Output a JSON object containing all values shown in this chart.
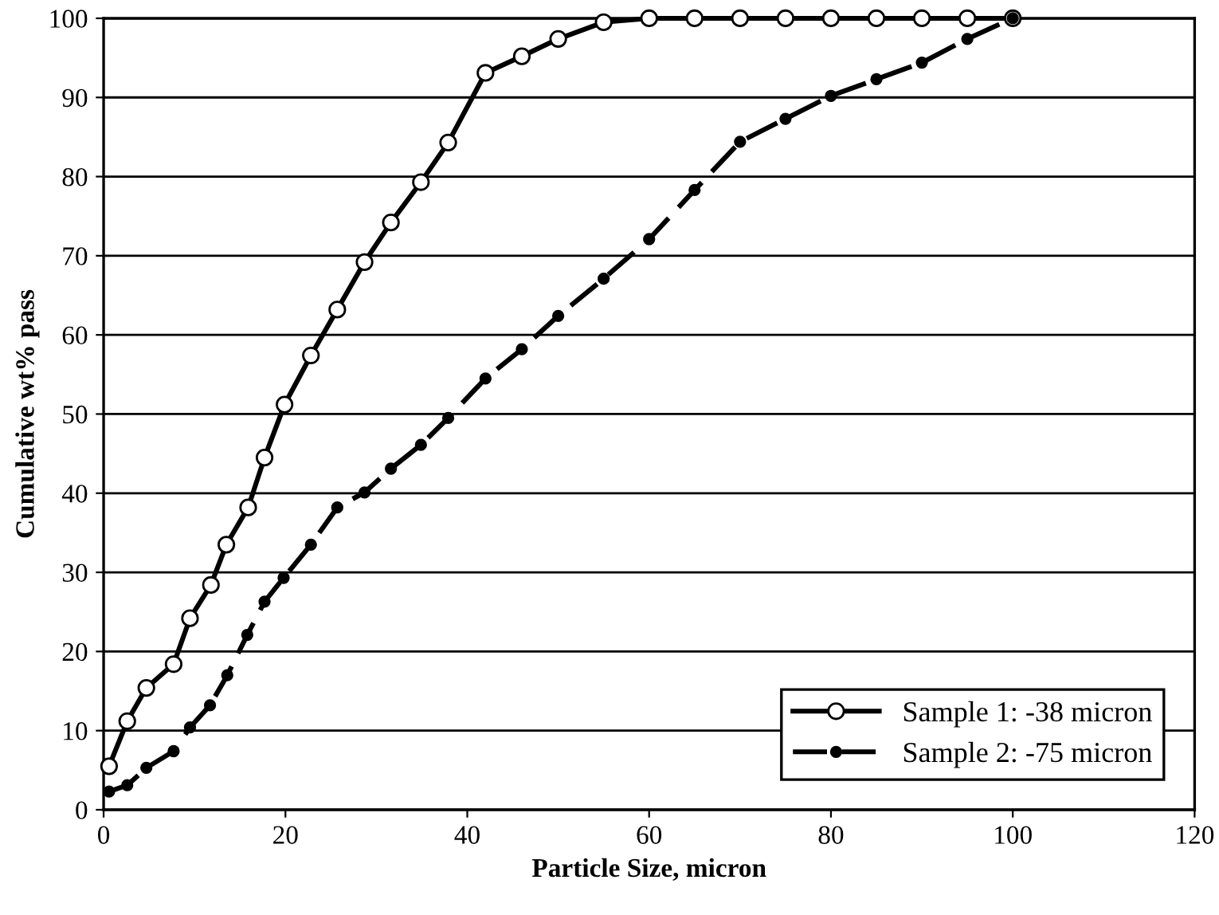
{
  "chart_data": {
    "type": "line",
    "xlabel": "Particle Size, micron",
    "ylabel": "Cumulative wt% pass",
    "xlim": [
      0,
      120
    ],
    "xticks": [
      0,
      20,
      40,
      60,
      80,
      100,
      120
    ],
    "ylim": [
      0,
      100
    ],
    "yticks": [
      0,
      10,
      20,
      30,
      40,
      50,
      60,
      70,
      80,
      90,
      100
    ],
    "grid": "y",
    "legend": "bottom right",
    "series": [
      {
        "name": "Sample 1: -38 micron",
        "color": "#000000",
        "marker": "circle",
        "line_style": "solid",
        "x": [
          0.6,
          2.6,
          4.7,
          7.7,
          9.5,
          11.8,
          13.5,
          15.9,
          17.7,
          19.9,
          22.8,
          25.7,
          28.7,
          31.6,
          34.9,
          37.9,
          42,
          46,
          50,
          55,
          60,
          65,
          70,
          75,
          80,
          85,
          90,
          95,
          100
        ],
        "values": [
          5.5,
          11.2,
          15.4,
          18.4,
          24.2,
          28.4,
          33.5,
          38.2,
          44.5,
          51.2,
          57.4,
          63.2,
          69.2,
          74.2,
          79.3,
          84.3,
          93.1,
          95.2,
          97.4,
          99.5,
          100,
          100,
          100,
          100,
          100,
          100,
          100,
          100,
          100
        ]
      },
      {
        "name": "Sample 2: -75 micron",
        "color": "#000000",
        "marker": "circle",
        "line_style": "dashed",
        "x": [
          0.6,
          2.6,
          4.7,
          7.7,
          9.5,
          11.7,
          13.6,
          15.8,
          17.7,
          19.8,
          22.8,
          25.7,
          28.7,
          31.6,
          34.9,
          37.9,
          42,
          46,
          50,
          55,
          60,
          65,
          70,
          75,
          80,
          85,
          90,
          95,
          100
        ],
        "values": [
          2.3,
          3.1,
          5.3,
          7.4,
          10.4,
          13.2,
          17.0,
          22.1,
          26.3,
          29.3,
          33.5,
          38.2,
          40.1,
          43.1,
          46.1,
          49.5,
          54.5,
          58.2,
          62.4,
          67.1,
          72.1,
          78.3,
          84.4,
          87.3,
          90.2,
          92.3,
          94.4,
          97.4,
          100
        ]
      }
    ]
  }
}
